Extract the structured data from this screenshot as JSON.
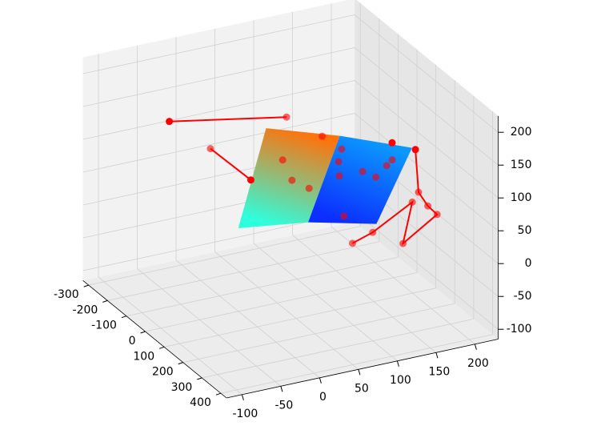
{
  "chart_data": {
    "type": "scatter3d",
    "xlim": [
      -330,
      430
    ],
    "ylim": [
      -120,
      230
    ],
    "zlim": [
      -115,
      225
    ],
    "xticks": [
      -300,
      -200,
      -100,
      0,
      100,
      200,
      300,
      400
    ],
    "yticks": [
      -100,
      -50,
      0,
      50,
      100,
      150,
      200
    ],
    "zticks": [
      -100,
      -50,
      0,
      50,
      100,
      150,
      200
    ],
    "grid": true,
    "surface": {
      "x": [
        -100,
        250
      ],
      "y": [
        [
          60,
          155,
          248
        ],
        [
          -61,
          29,
          117
        ]
      ],
      "z": [
        [
          125,
          89,
          47
        ],
        [
          86,
          72,
          47
        ]
      ]
    },
    "lines": {
      "color": "#ff0000",
      "x": [
        0,
        0,
        null,
        0,
        0,
        null,
        0,
        0,
        0,
        0,
        0,
        0,
        0,
        0
      ],
      "y": [
        62,
        -89,
        null,
        -36,
        16,
        null,
        228,
        232,
        244,
        256,
        212,
        224,
        173,
        147
      ],
      "z": [
        165,
        197,
        null,
        142,
        81,
        null,
        73,
        7,
        -17,
        -33,
        -66,
        -6,
        -39,
        -49
      ]
    },
    "points": {
      "color": "#ff0000",
      "x": [
        0,
        0,
        0,
        0,
        0,
        0,
        0,
        0,
        0,
        0,
        0,
        0,
        0,
        0,
        0,
        0,
        0,
        0,
        0,
        0,
        0,
        0,
        0,
        0,
        0
      ],
      "y": [
        -89,
        62,
        -36,
        16,
        108,
        133,
        57,
        129,
        69,
        91,
        130,
        160,
        198,
        191,
        198,
        177,
        228,
        232,
        224,
        244,
        256,
        136,
        173,
        147,
        212
      ],
      "z": [
        197,
        165,
        142,
        81,
        124,
        98,
        101,
        80,
        67,
        49,
        58,
        57,
        91,
        58,
        65,
        44,
        73,
        7,
        -6,
        -17,
        -33,
        -5,
        -39,
        -49,
        -66
      ]
    }
  }
}
